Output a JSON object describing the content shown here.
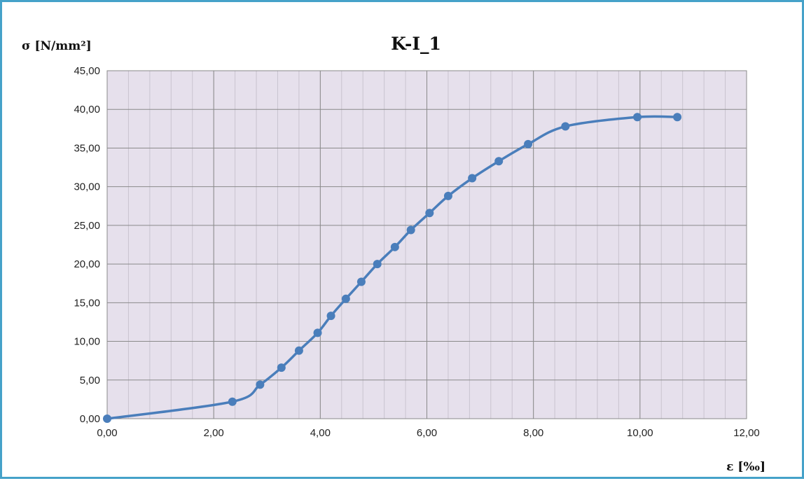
{
  "chart_data": {
    "type": "scatter",
    "title": "K-I_1",
    "xlabel": "ε [‰]",
    "ylabel": "σ [N/mm²]",
    "xlim": [
      0,
      12
    ],
    "ylim": [
      0,
      45
    ],
    "x_major_step": 2,
    "x_minor_step": 0.4,
    "y_major_step": 5,
    "x_ticks": [
      "0,00",
      "2,00",
      "4,00",
      "6,00",
      "8,00",
      "10,00",
      "12,00"
    ],
    "y_ticks": [
      "0,00",
      "5,00",
      "10,00",
      "15,00",
      "20,00",
      "25,00",
      "30,00",
      "35,00",
      "40,00",
      "45,00"
    ],
    "grid": true,
    "legend": "none",
    "colors": {
      "line": "#4a7ebb",
      "marker": "#4a7ebb",
      "plot_background": "#e6e0ec",
      "major_grid": "#8a8a8a",
      "minor_grid": "#c9c3cf",
      "border": "#45a2c9"
    },
    "series": [
      {
        "marker": "circle",
        "smooth": true,
        "points": [
          [
            0.0,
            0.0
          ],
          [
            2.35,
            2.2
          ],
          [
            2.87,
            4.4
          ],
          [
            3.27,
            6.6
          ],
          [
            3.6,
            8.8
          ],
          [
            3.95,
            11.1
          ],
          [
            4.2,
            13.3
          ],
          [
            4.48,
            15.5
          ],
          [
            4.77,
            17.7
          ],
          [
            5.07,
            20.0
          ],
          [
            5.4,
            22.2
          ],
          [
            5.7,
            24.4
          ],
          [
            6.05,
            26.6
          ],
          [
            6.4,
            28.8
          ],
          [
            6.85,
            31.1
          ],
          [
            7.35,
            33.3
          ],
          [
            7.9,
            35.5
          ],
          [
            8.6,
            37.8
          ],
          [
            9.95,
            39.0
          ],
          [
            10.7,
            39.0
          ]
        ]
      }
    ]
  }
}
